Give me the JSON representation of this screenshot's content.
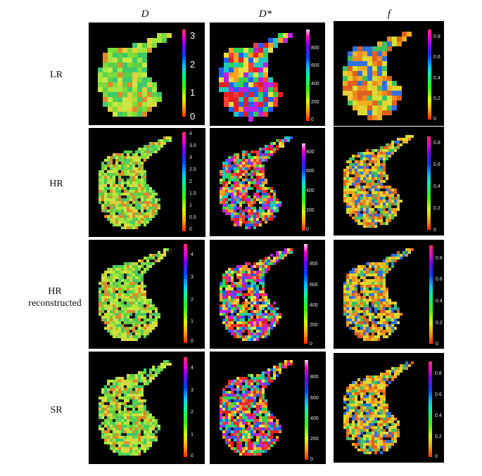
{
  "columns": [
    "D",
    "D*",
    "f"
  ],
  "rows": [
    "LR",
    "HR",
    "HR reconstructed",
    "SR"
  ],
  "colorbars": {
    "D_LR": [
      "3",
      "2",
      "1",
      "0"
    ],
    "D_HR": [
      "4",
      "3.5",
      "3",
      "2.5",
      "2",
      "1.5",
      "1",
      "0.5",
      "0"
    ],
    "D_HRrec": [
      "4",
      "3",
      "2",
      "1",
      "0"
    ],
    "D_SR": [
      "4",
      "3",
      "2",
      "1",
      "0"
    ],
    "Dstar_LR": [
      "800",
      "600",
      "400",
      "200",
      "0"
    ],
    "Dstar_HR": [
      "800",
      "600",
      "400",
      "200",
      "0"
    ],
    "Dstar_HRrec": [
      "800",
      "600",
      "400",
      "200",
      "0"
    ],
    "Dstar_SR": [
      "800",
      "600",
      "400",
      "200",
      "0"
    ],
    "f_LR": [
      "0.8",
      "0.6",
      "0.4",
      "0.2",
      "0"
    ],
    "f_HR": [
      "0.8",
      "0.6",
      "0.4",
      "0.2",
      "0"
    ],
    "f_HRrec": [
      "0.8",
      "0.6",
      "0.4",
      "0.2",
      "0"
    ],
    "f_SR": [
      "0.8",
      "0.6",
      "0.4",
      "0.2",
      "0"
    ]
  },
  "maps": {
    "D": {
      "palette": [
        "#7ddc3a",
        "#a6e63c",
        "#5ccf4a",
        "#c8e842",
        "#3ec96b",
        "#e0d23a",
        "#e08a2a"
      ],
      "accent": "#1a1a1a"
    },
    "Dstar": {
      "palette": [
        "#e52020",
        "#ff3a3a",
        "#2fd44a",
        "#ffa020",
        "#e8e040",
        "#2060ff",
        "#c020e0",
        "#20c8c0"
      ],
      "accent": "#000000"
    },
    "f": {
      "palette": [
        "#f0b020",
        "#e8d030",
        "#f08a20",
        "#d6e030",
        "#e06020",
        "#40c060",
        "#3070e0"
      ],
      "accent": "#141414"
    }
  }
}
